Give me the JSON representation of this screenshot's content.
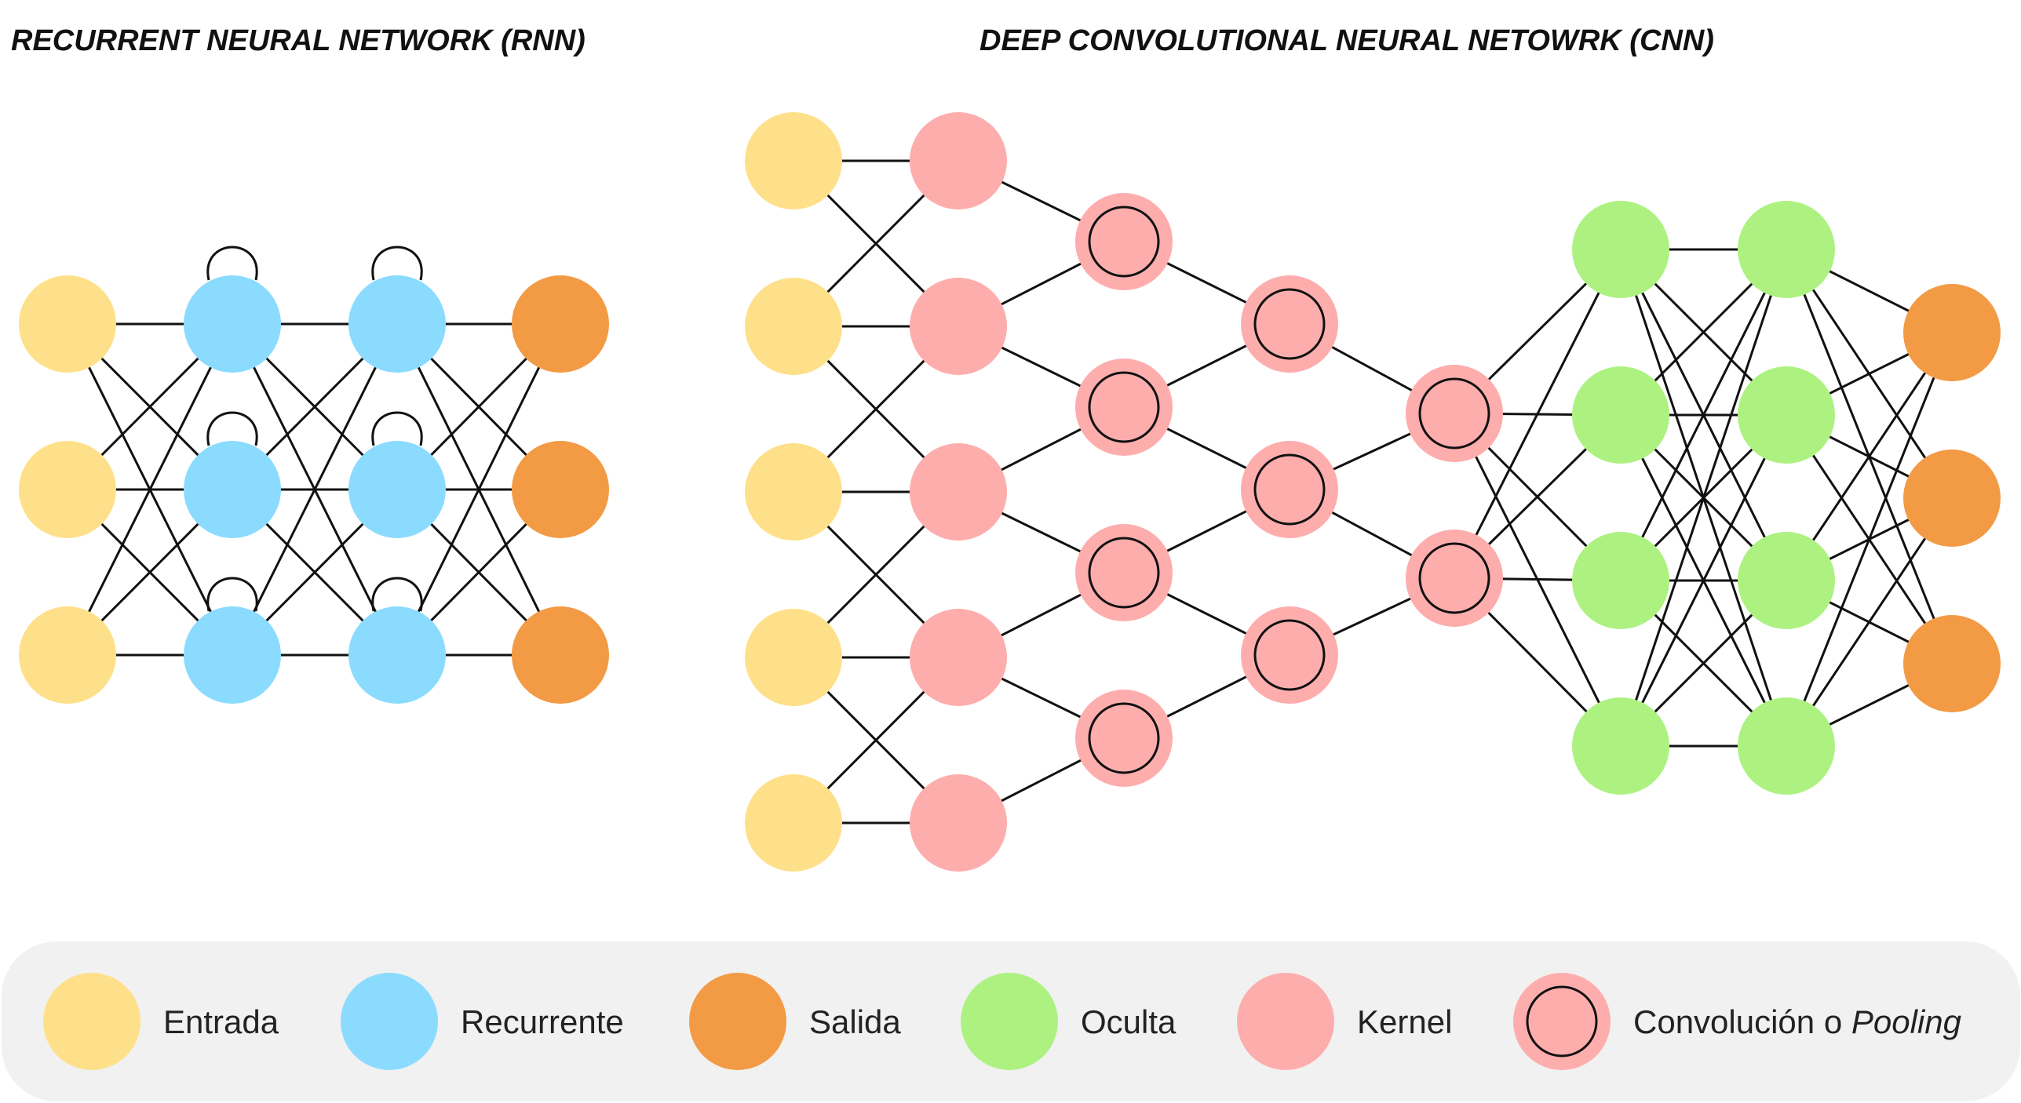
{
  "colors": {
    "input": "#FFE08A",
    "recurrent": "#8BDBFF",
    "output": "#F39A45",
    "hidden": "#ADF281",
    "kernel": "#FEADAD",
    "conv_ring": "#FEADAD",
    "edge": "#111111",
    "legend_bg": "#F1F1F1"
  },
  "rnn": {
    "title": "RECURRENT NEURAL NETWORK (RNN)",
    "layers": [
      "input",
      "recurrent",
      "recurrent",
      "output"
    ],
    "nodes_per_layer": [
      3,
      3,
      3,
      3
    ],
    "self_loops_on": [
      "recurrent"
    ]
  },
  "cnn": {
    "title": "DEEP CONVOLUTIONAL NEURAL NETOWRK (CNN)",
    "layers": [
      "input",
      "kernel",
      "convolution",
      "convolution",
      "convolution",
      "hidden",
      "hidden",
      "output"
    ],
    "nodes_per_layer": [
      5,
      5,
      4,
      3,
      2,
      4,
      4,
      3
    ]
  },
  "legend": [
    {
      "key": "input",
      "label": "Entrada",
      "icon": "input-node-icon"
    },
    {
      "key": "recurrent",
      "label": "Recurrente",
      "icon": "recurrent-node-icon"
    },
    {
      "key": "output",
      "label": "Salida",
      "icon": "output-node-icon"
    },
    {
      "key": "hidden",
      "label": "Oculta",
      "icon": "hidden-node-icon"
    },
    {
      "key": "kernel",
      "label": "Kernel",
      "icon": "kernel-node-icon"
    },
    {
      "key": "convolution",
      "label": "Convolución o",
      "label_italic": "Pooling",
      "icon": "convolution-node-icon"
    }
  ]
}
